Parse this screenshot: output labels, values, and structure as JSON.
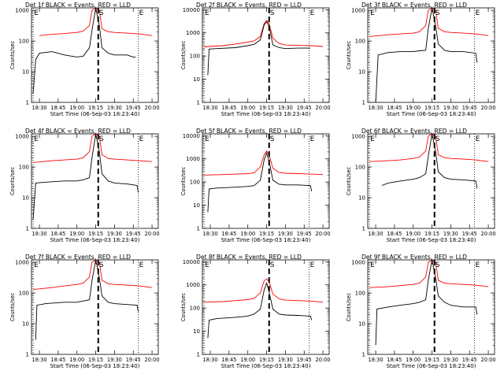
{
  "chart_data": [
    {
      "type": "line",
      "title": "Det 1f BLACK = Events, RED = LLD",
      "xlabel": "Start Time (06-Sep-03 18:23:40)",
      "ylabel": "Counts/sec",
      "x_ticks": [
        "18:30",
        "18:45",
        "19:00",
        "19:15",
        "19:30",
        "19:45",
        "20:00"
      ],
      "y_ticks": [
        "1",
        "10",
        "100",
        "1000"
      ],
      "ylim": [
        1,
        1200
      ],
      "log_y": true,
      "markers": [
        "E",
        "S",
        "E"
      ],
      "colors": {
        "events": "#000000",
        "lld": "#ff0000"
      },
      "series": [
        {
          "name": "LLD",
          "x": [
            "18:30",
            "18:40",
            "18:50",
            "19:00",
            "19:05",
            "19:10",
            "19:12",
            "19:15",
            "19:18",
            "19:20",
            "19:25",
            "19:30",
            "19:40",
            "19:50",
            "20:00"
          ],
          "values": [
            150,
            165,
            175,
            190,
            210,
            320,
            1000,
            1200,
            1000,
            250,
            200,
            190,
            180,
            170,
            150
          ]
        },
        {
          "name": "Events",
          "x": [
            "18:25",
            "18:27",
            "18:30",
            "18:40",
            "18:50",
            "19:00",
            "19:05",
            "19:10",
            "19:12",
            "19:15",
            "19:18",
            "19:20",
            "19:25",
            "19:30",
            "19:40",
            "19:45",
            "19:47"
          ],
          "values": [
            2,
            25,
            40,
            45,
            35,
            30,
            32,
            60,
            220,
            1200,
            300,
            60,
            40,
            35,
            35,
            30,
            30
          ]
        }
      ]
    },
    {
      "type": "line",
      "title": "Det 2f BLACK = Events, RED = LLD",
      "xlabel": "Start Time (06-Sep-03 18:23:40)",
      "ylabel": "Counts/sec",
      "x_ticks": [
        "18:30",
        "18:45",
        "19:00",
        "19:15",
        "19:30",
        "19:45",
        "20:00"
      ],
      "y_ticks": [
        "1",
        "10",
        "100",
        "1000",
        "10000"
      ],
      "ylim": [
        1,
        12000
      ],
      "log_y": true,
      "markers": [
        "E",
        "S",
        "E"
      ],
      "colors": {
        "events": "#000000",
        "lld": "#ff0000"
      },
      "series": [
        {
          "name": "LLD",
          "x": [
            "18:25",
            "18:40",
            "18:50",
            "19:00",
            "19:05",
            "19:10",
            "19:13",
            "19:15",
            "19:17",
            "19:20",
            "19:25",
            "19:30",
            "19:40",
            "19:50",
            "20:00"
          ],
          "values": [
            250,
            280,
            330,
            400,
            450,
            700,
            2500,
            3500,
            2500,
            600,
            350,
            300,
            290,
            280,
            260
          ]
        },
        {
          "name": "Events",
          "x": [
            "18:28",
            "18:29",
            "18:35",
            "18:50",
            "19:00",
            "19:05",
            "19:10",
            "19:13",
            "19:15",
            "19:17",
            "19:20",
            "19:25",
            "19:30",
            "19:40",
            "19:50"
          ],
          "values": [
            15,
            200,
            210,
            230,
            280,
            320,
            500,
            2200,
            3000,
            2000,
            300,
            230,
            210,
            220,
            220
          ]
        }
      ]
    },
    {
      "type": "line",
      "title": "Det 3f BLACK = Events, RED = LLD",
      "xlabel": "Start Time (06-Sep-03 18:23:40)",
      "ylabel": "Counts/sec",
      "x_ticks": [
        "18:30",
        "18:45",
        "19:00",
        "19:15",
        "19:30",
        "19:45",
        "20:00"
      ],
      "y_ticks": [
        "1",
        "10",
        "100",
        "1000"
      ],
      "ylim": [
        1,
        1200
      ],
      "log_y": true,
      "markers": [
        "E",
        "S",
        "E"
      ],
      "colors": {
        "events": "#000000",
        "lld": "#ff0000"
      },
      "series": [
        {
          "name": "LLD",
          "x": [
            "18:25",
            "18:40",
            "18:50",
            "19:00",
            "19:05",
            "19:10",
            "19:12",
            "19:15",
            "19:18",
            "19:20",
            "19:25",
            "19:30",
            "19:40",
            "19:50",
            "20:00"
          ],
          "values": [
            140,
            160,
            170,
            180,
            200,
            320,
            1000,
            1200,
            1000,
            260,
            200,
            190,
            180,
            170,
            150
          ]
        },
        {
          "name": "Events",
          "x": [
            "18:30",
            "18:32",
            "18:40",
            "18:50",
            "19:00",
            "19:05",
            "19:10",
            "19:12",
            "19:15",
            "19:18",
            "19:20",
            "19:25",
            "19:30",
            "19:40",
            "19:50",
            "19:51"
          ],
          "values": [
            1,
            35,
            42,
            45,
            45,
            48,
            50,
            250,
            1200,
            300,
            80,
            50,
            45,
            45,
            40,
            20
          ]
        }
      ]
    },
    {
      "type": "line",
      "title": "Det 4f BLACK = Events, RED = LLD",
      "xlabel": "Start Time (06-Sep-03 18:23:40)",
      "ylabel": "Counts/sec",
      "x_ticks": [
        "18:30",
        "18:45",
        "19:00",
        "19:15",
        "19:30",
        "19:45",
        "20:00"
      ],
      "y_ticks": [
        "1",
        "10",
        "100",
        "1000"
      ],
      "ylim": [
        1,
        1200
      ],
      "log_y": true,
      "markers": [
        "E",
        "S",
        "E"
      ],
      "colors": {
        "events": "#000000",
        "lld": "#ff0000"
      },
      "series": [
        {
          "name": "LLD",
          "x": [
            "18:25",
            "18:40",
            "18:50",
            "19:00",
            "19:05",
            "19:10",
            "19:12",
            "19:15",
            "19:18",
            "19:20",
            "19:25",
            "19:30",
            "19:40",
            "19:50",
            "20:00"
          ],
          "values": [
            140,
            160,
            170,
            180,
            200,
            320,
            1000,
            1200,
            1000,
            250,
            190,
            180,
            170,
            160,
            150
          ]
        },
        {
          "name": "Events",
          "x": [
            "18:25",
            "18:27",
            "18:35",
            "18:50",
            "19:00",
            "19:05",
            "19:10",
            "19:12",
            "19:15",
            "19:18",
            "19:20",
            "19:25",
            "19:30",
            "19:40",
            "19:48",
            "19:49"
          ],
          "values": [
            2,
            30,
            32,
            35,
            35,
            38,
            45,
            200,
            1200,
            300,
            60,
            35,
            30,
            28,
            25,
            15
          ]
        }
      ]
    },
    {
      "type": "line",
      "title": "Det 5f BLACK = Events, RED = LLD",
      "xlabel": "Start Time (06-Sep-03 18:23:40)",
      "ylabel": "Counts/sec",
      "x_ticks": [
        "18:30",
        "18:45",
        "19:00",
        "19:15",
        "19:30",
        "19:45",
        "20:00"
      ],
      "y_ticks": [
        "1",
        "10",
        "100",
        "1000",
        "10000"
      ],
      "ylim": [
        1,
        12000
      ],
      "log_y": true,
      "markers": [
        "E",
        "S",
        "E"
      ],
      "colors": {
        "events": "#000000",
        "lld": "#ff0000"
      },
      "series": [
        {
          "name": "LLD",
          "x": [
            "18:25",
            "18:40",
            "18:50",
            "19:00",
            "19:05",
            "19:10",
            "19:13",
            "19:15",
            "19:17",
            "19:20",
            "19:25",
            "19:30",
            "19:40",
            "19:50",
            "20:00"
          ],
          "values": [
            200,
            210,
            220,
            230,
            250,
            450,
            1500,
            2200,
            1500,
            400,
            260,
            240,
            230,
            220,
            210
          ]
        },
        {
          "name": "Events",
          "x": [
            "18:28",
            "18:29",
            "18:35",
            "18:50",
            "19:00",
            "19:05",
            "19:10",
            "19:13",
            "19:15",
            "19:17",
            "19:20",
            "19:25",
            "19:30",
            "19:40",
            "19:50",
            "19:51"
          ],
          "values": [
            5,
            50,
            55,
            60,
            65,
            70,
            120,
            900,
            1800,
            800,
            120,
            80,
            75,
            75,
            70,
            40
          ]
        }
      ]
    },
    {
      "type": "line",
      "title": "Det 6f BLACK = Events, RED = LLD",
      "xlabel": "Start Time (06-Sep-03 18:23:40)",
      "ylabel": "Counts/sec",
      "x_ticks": [
        "18:30",
        "18:45",
        "19:00",
        "19:15",
        "19:30",
        "19:45",
        "20:00"
      ],
      "y_ticks": [
        "1",
        "10",
        "100",
        "1000"
      ],
      "ylim": [
        1,
        1200
      ],
      "log_y": true,
      "markers": [
        "E",
        "S",
        "E"
      ],
      "colors": {
        "events": "#000000",
        "lld": "#ff0000"
      },
      "series": [
        {
          "name": "LLD",
          "x": [
            "18:25",
            "18:40",
            "18:50",
            "19:00",
            "19:05",
            "19:10",
            "19:12",
            "19:15",
            "19:18",
            "19:20",
            "19:25",
            "19:30",
            "19:40",
            "19:50",
            "20:00"
          ],
          "values": [
            150,
            160,
            170,
            190,
            210,
            330,
            1000,
            1200,
            1000,
            250,
            200,
            190,
            180,
            170,
            150
          ]
        },
        {
          "name": "Events",
          "x": [
            "18:35",
            "18:40",
            "18:50",
            "19:00",
            "19:05",
            "19:10",
            "19:12",
            "19:15",
            "19:18",
            "19:20",
            "19:25",
            "19:30",
            "19:40",
            "19:50",
            "19:51"
          ],
          "values": [
            25,
            30,
            35,
            40,
            45,
            60,
            220,
            1200,
            300,
            70,
            45,
            40,
            38,
            35,
            20
          ]
        }
      ]
    },
    {
      "type": "line",
      "title": "Det 7f BLACK = Events, RED = LLD",
      "xlabel": "Start Time (06-Sep-03 18:23:40)",
      "ylabel": "Counts/sec",
      "x_ticks": [
        "18:30",
        "18:45",
        "19:00",
        "19:15",
        "19:30",
        "19:45",
        "20:00"
      ],
      "y_ticks": [
        "1",
        "10",
        "100",
        "1000"
      ],
      "ylim": [
        1,
        1200
      ],
      "log_y": true,
      "markers": [
        "E",
        "S",
        "E"
      ],
      "colors": {
        "events": "#000000",
        "lld": "#ff0000"
      },
      "series": [
        {
          "name": "LLD",
          "x": [
            "18:25",
            "18:40",
            "18:50",
            "19:00",
            "19:05",
            "19:10",
            "19:12",
            "19:15",
            "19:18",
            "19:20",
            "19:25",
            "19:30",
            "19:40",
            "19:50",
            "20:00"
          ],
          "values": [
            130,
            150,
            170,
            190,
            210,
            330,
            1000,
            1200,
            1000,
            260,
            200,
            190,
            180,
            170,
            150
          ]
        },
        {
          "name": "Events",
          "x": [
            "18:27",
            "18:28",
            "18:35",
            "18:50",
            "19:00",
            "19:05",
            "19:10",
            "19:12",
            "19:15",
            "19:18",
            "19:20",
            "19:25",
            "19:30",
            "19:40",
            "19:48",
            "19:49"
          ],
          "values": [
            3,
            40,
            45,
            50,
            50,
            55,
            60,
            250,
            1200,
            300,
            80,
            50,
            45,
            42,
            40,
            25
          ]
        }
      ]
    },
    {
      "type": "line",
      "title": "Det 8f BLACK = Events, RED = LLD",
      "xlabel": "Start Time (06-Sep-03 18:23:40)",
      "ylabel": "Counts/sec",
      "x_ticks": [
        "18:30",
        "18:45",
        "19:00",
        "19:15",
        "19:30",
        "19:45",
        "20:00"
      ],
      "y_ticks": [
        "1",
        "10",
        "100",
        "1000",
        "10000"
      ],
      "ylim": [
        1,
        12000
      ],
      "log_y": true,
      "markers": [
        "E",
        "S",
        "E"
      ],
      "colors": {
        "events": "#000000",
        "lld": "#ff0000"
      },
      "series": [
        {
          "name": "LLD",
          "x": [
            "18:25",
            "18:40",
            "18:50",
            "19:00",
            "19:05",
            "19:10",
            "19:13",
            "19:15",
            "19:17",
            "19:20",
            "19:25",
            "19:30",
            "19:40",
            "19:50",
            "20:00"
          ],
          "values": [
            180,
            190,
            210,
            230,
            260,
            450,
            1500,
            1800,
            1400,
            400,
            250,
            220,
            210,
            200,
            180
          ]
        },
        {
          "name": "Events",
          "x": [
            "18:28",
            "18:29",
            "18:35",
            "18:50",
            "19:00",
            "19:05",
            "19:10",
            "19:13",
            "19:15",
            "19:17",
            "19:20",
            "19:25",
            "19:30",
            "19:40",
            "19:50",
            "19:51"
          ],
          "values": [
            5,
            30,
            35,
            40,
            45,
            55,
            90,
            600,
            1200,
            500,
            90,
            55,
            50,
            48,
            45,
            30
          ]
        }
      ]
    },
    {
      "type": "line",
      "title": "Det 9f BLACK = Events, RED = LLD",
      "xlabel": "Start Time (06-Sep-03 18:23:40)",
      "ylabel": "Counts/sec",
      "x_ticks": [
        "18:30",
        "18:45",
        "19:00",
        "19:15",
        "19:30",
        "19:45",
        "20:00"
      ],
      "y_ticks": [
        "1",
        "10",
        "100",
        "1000"
      ],
      "ylim": [
        1,
        1200
      ],
      "log_y": true,
      "markers": [
        "E",
        "S",
        "E"
      ],
      "colors": {
        "events": "#000000",
        "lld": "#ff0000"
      },
      "series": [
        {
          "name": "LLD",
          "x": [
            "18:25",
            "18:40",
            "18:50",
            "19:00",
            "19:05",
            "19:10",
            "19:12",
            "19:15",
            "19:18",
            "19:20",
            "19:25",
            "19:30",
            "19:40",
            "19:50",
            "20:00"
          ],
          "values": [
            150,
            160,
            175,
            190,
            210,
            330,
            1000,
            1200,
            1000,
            260,
            210,
            200,
            190,
            180,
            160
          ]
        },
        {
          "name": "Events",
          "x": [
            "18:30",
            "18:31",
            "18:40",
            "18:50",
            "19:00",
            "19:05",
            "19:10",
            "19:12",
            "19:15",
            "19:18",
            "19:20",
            "19:25",
            "19:30",
            "19:40",
            "19:50",
            "19:51"
          ],
          "values": [
            2,
            30,
            35,
            40,
            45,
            50,
            60,
            250,
            1200,
            300,
            80,
            50,
            40,
            35,
            35,
            20
          ]
        }
      ]
    }
  ]
}
